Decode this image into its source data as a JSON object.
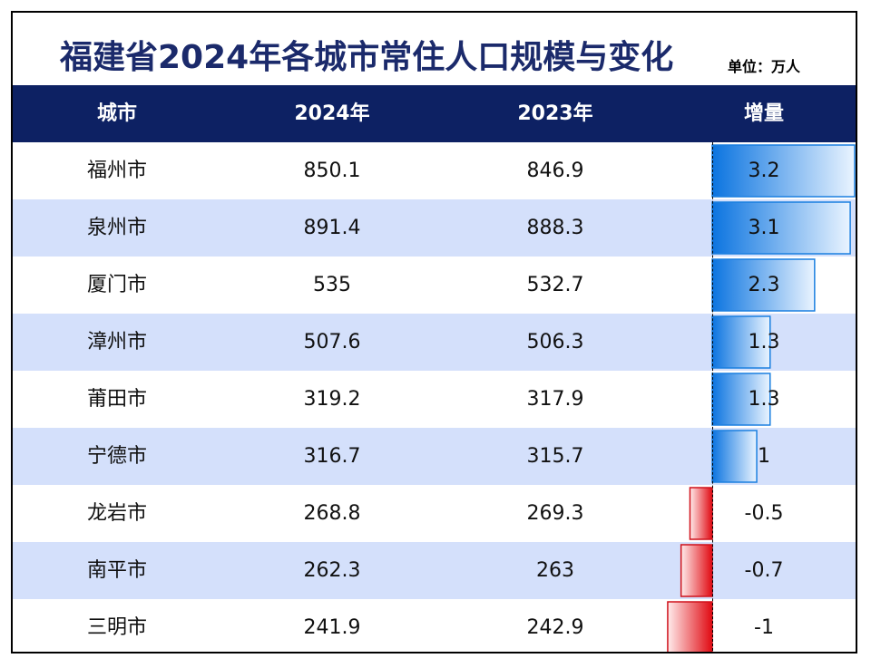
{
  "title": "福建省2024年各城市常住人口规模与变化",
  "unit": "单位：万人",
  "columns": [
    "城市",
    "2024年",
    "2023年",
    "增量"
  ],
  "colors": {
    "header_bg": "#0d2163",
    "title": "#1b2a6b",
    "row_alt": "#d4e0fb",
    "positive_bar": "#1a7fe0",
    "negative_bar": "#e8141c"
  },
  "chart_data": {
    "type": "table",
    "title": "福建省2024年各城市常住人口规模与变化",
    "unit": "单位：万人",
    "columns": [
      "城市",
      "2024年",
      "2023年",
      "增量"
    ],
    "rows": [
      {
        "city": "福州市",
        "y2024": "850.1",
        "y2023": "846.9",
        "increase": "3.2"
      },
      {
        "city": "泉州市",
        "y2024": "891.4",
        "y2023": "888.3",
        "increase": "3.1"
      },
      {
        "city": "厦门市",
        "y2024": "535",
        "y2023": "532.7",
        "increase": "2.3"
      },
      {
        "city": "漳州市",
        "y2024": "507.6",
        "y2023": "506.3",
        "increase": "1.3"
      },
      {
        "city": "莆田市",
        "y2024": "319.2",
        "y2023": "317.9",
        "increase": "1.3"
      },
      {
        "city": "宁德市",
        "y2024": "316.7",
        "y2023": "315.7",
        "increase": "1"
      },
      {
        "city": "龙岩市",
        "y2024": "268.8",
        "y2023": "269.3",
        "increase": "-0.5"
      },
      {
        "city": "南平市",
        "y2024": "262.3",
        "y2023": "263",
        "increase": "-0.7"
      },
      {
        "city": "三明市",
        "y2024": "241.9",
        "y2023": "242.9",
        "increase": "-1"
      }
    ],
    "bar_column": "增量",
    "bar_range": [
      -1.5,
      3.2
    ]
  }
}
